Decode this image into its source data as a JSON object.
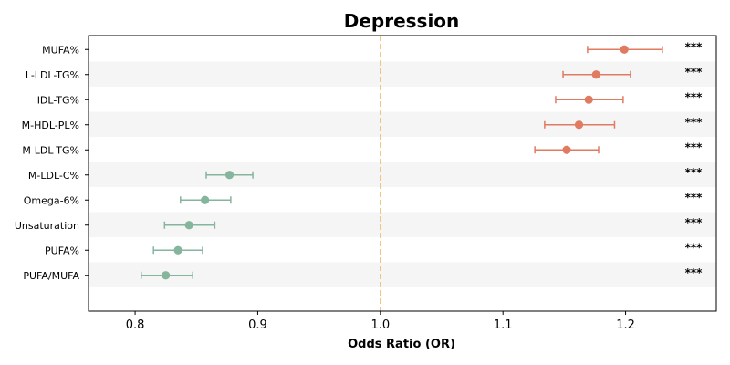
{
  "chart_data": {
    "type": "scatter",
    "subtype": "forest-plot",
    "title": "Depression",
    "xlabel": "Odds Ratio (OR)",
    "ylabel": "",
    "xlim": [
      0.762,
      1.274
    ],
    "xticks": [
      "0.8",
      "0.9",
      "1.0",
      "1.1",
      "1.2"
    ],
    "xtick_values": [
      0.8,
      0.9,
      1.0,
      1.1,
      1.2
    ],
    "reference_line": 1.0,
    "grid": false,
    "row_striping": true,
    "colors": {
      "positive": "#E07B62",
      "negative": "#86B59D",
      "reference": "#F0C27A",
      "stripe": "#F5F5F5"
    },
    "categories": [
      "MUFA%",
      "L-LDL-TG%",
      "IDL-TG%",
      "M-HDL-PL%",
      "M-LDL-TG%",
      "M-LDL-C%",
      "Omega-6%",
      "Unsaturation",
      "PUFA%",
      "PUFA/MUFA"
    ],
    "or": [
      1.199,
      1.176,
      1.17,
      1.162,
      1.152,
      0.877,
      0.857,
      0.844,
      0.835,
      0.825
    ],
    "ci_low": [
      1.169,
      1.149,
      1.143,
      1.134,
      1.126,
      0.858,
      0.837,
      0.824,
      0.815,
      0.805
    ],
    "ci_high": [
      1.23,
      1.204,
      1.198,
      1.191,
      1.178,
      0.896,
      0.878,
      0.865,
      0.855,
      0.847
    ],
    "significance": [
      "***",
      "***",
      "***",
      "***",
      "***",
      "***",
      "***",
      "***",
      "***",
      "***"
    ]
  }
}
